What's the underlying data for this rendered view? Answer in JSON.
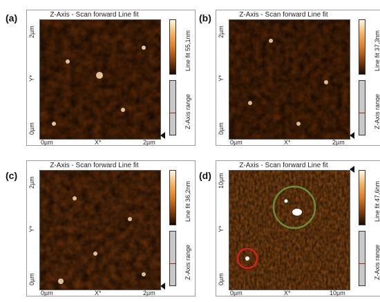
{
  "panels": [
    {
      "letter": "(a)",
      "title": "Z-Axis - Scan forward  Line fit",
      "y_top": "2µm",
      "y_bottom": "0µm",
      "y_axis": "Y*",
      "x_left": "0µm",
      "x_axis": "X*",
      "x_right": "2µm",
      "colorbar_label": "Line fit 55,1nm",
      "zrange_label": "Z-Axis range"
    },
    {
      "letter": "(b)",
      "title": "Z-Axis - Scan forward  Line fit",
      "y_top": "2µm",
      "y_bottom": "0µm",
      "y_axis": "Y*",
      "x_left": "0µm",
      "x_axis": "X*",
      "x_right": "2µm",
      "colorbar_label": "Line fit 37,3nm",
      "zrange_label": "Z-Axis range"
    },
    {
      "letter": "(c)",
      "title": "Z-Axis - Scan forward  Line fit",
      "y_top": "2µm",
      "y_bottom": "0µm",
      "y_axis": "Y*",
      "x_left": "0µm",
      "x_axis": "X*",
      "x_right": "2µm",
      "colorbar_label": "Line fit 36,2nm",
      "zrange_label": "Z-Axis range"
    },
    {
      "letter": "(d)",
      "title": "Z-Axis - Scan forward  Line fit",
      "y_top": "10µm",
      "y_bottom": "0µm",
      "y_axis": "Y*",
      "x_left": "0µm",
      "x_axis": "X*",
      "x_right": "10µm",
      "colorbar_label": "Line fit 47,6nm",
      "zrange_label": "Z-Axis range"
    }
  ],
  "colors": {
    "surface_dark": "#3a1a05",
    "surface_mid": "#c8721f",
    "surface_light": "#ffe2b0",
    "circle_green": "#6b8e3a",
    "circle_red": "#d42020"
  }
}
